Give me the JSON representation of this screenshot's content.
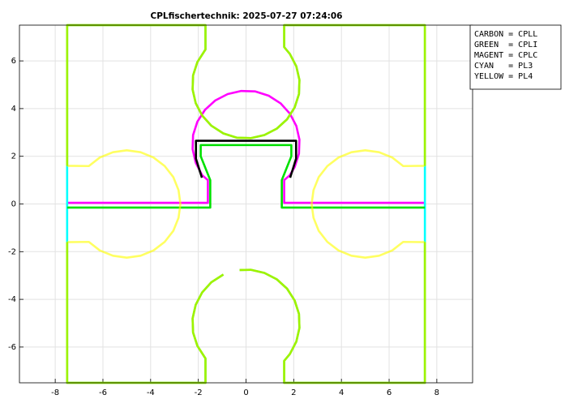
{
  "chart_data": {
    "type": "line",
    "title": "CPLfischertechnik: 2025-07-27 07:24:06",
    "xlim": [
      -9.5,
      9.5
    ],
    "ylim": [
      -7.5,
      7.5
    ],
    "xticks": [
      -8,
      -6,
      -4,
      -2,
      0,
      2,
      4,
      6,
      8
    ],
    "yticks": [
      -6,
      -4,
      -2,
      0,
      2,
      4,
      6
    ],
    "grid": true,
    "legend": "top-right",
    "series": [
      {
        "name": "CARBON = CPLL",
        "color": "#000000",
        "x": [
          -1.85,
          -2.1,
          -2.1,
          2.1,
          2.1,
          1.85
        ],
        "values": [
          1.1,
          1.9,
          2.65,
          2.65,
          1.9,
          1.1
        ]
      },
      {
        "name": "GREEN  = CPLI",
        "color": "#00e000",
        "x": [
          -7.5,
          -1.5,
          -1.5,
          -1.9,
          -1.9,
          1.9,
          1.9,
          1.5,
          1.5,
          7.5,
          null,
          -7.5,
          -7.5,
          -1.7,
          -1.7,
          -2.04,
          -2.22,
          -2.24,
          -2.11,
          -1.84,
          -1.45,
          -0.95,
          -0.39,
          0.2,
          0.77,
          1.29,
          1.72,
          2.04,
          2.22,
          2.24,
          2.11,
          1.84,
          1.6,
          1.6,
          7.5,
          7.5,
          null,
          -7.5,
          -7.5,
          -1.7,
          -1.7,
          -2.04,
          -2.22,
          -2.24,
          -2.11,
          -1.84,
          -1.45,
          -0.95,
          null,
          -0.27,
          0.2,
          0.77,
          1.29,
          1.72,
          2.04,
          2.22,
          2.24,
          2.11,
          1.84,
          1.6,
          1.6,
          7.5,
          7.5
        ],
        "values": [
          -0.15,
          -0.15,
          1.0,
          2.0,
          2.47,
          2.47,
          2.0,
          1.0,
          -0.15,
          -0.15,
          null,
          1.6,
          7.5,
          7.5,
          6.48,
          5.95,
          5.39,
          4.8,
          4.23,
          3.71,
          3.28,
          2.96,
          2.78,
          2.76,
          2.89,
          3.16,
          3.55,
          4.05,
          4.61,
          5.2,
          5.77,
          6.29,
          6.58,
          7.5,
          7.5,
          1.6,
          null,
          -1.6,
          -7.5,
          -7.5,
          -6.48,
          -5.95,
          -5.39,
          -4.8,
          -4.23,
          -3.71,
          -3.28,
          -2.96,
          null,
          -2.77,
          -2.76,
          -2.89,
          -3.16,
          -3.55,
          -4.05,
          -4.61,
          -5.2,
          -5.77,
          -6.29,
          -6.58,
          -7.5,
          -7.5,
          -1.6
        ]
      },
      {
        "name": "MAGENT = CPLC",
        "color": "#ff00ff",
        "x": [
          -7.5,
          -1.6,
          -1.6,
          -1.84,
          -2.11,
          -2.24,
          -2.22,
          -2.04,
          -1.72,
          -1.29,
          -0.77,
          -0.2,
          0.39,
          0.95,
          1.45,
          1.84,
          2.11,
          2.24,
          2.22,
          2.04,
          1.84,
          1.6,
          1.6,
          7.5
        ],
        "values": [
          0.05,
          0.05,
          1.0,
          1.21,
          1.73,
          2.3,
          2.89,
          3.45,
          3.95,
          4.34,
          4.61,
          4.74,
          4.72,
          4.54,
          4.22,
          3.79,
          3.27,
          2.7,
          2.11,
          1.55,
          1.21,
          1.0,
          0.05,
          0.05
        ]
      },
      {
        "name": "CYAN   = PL3",
        "color": "#00ffff",
        "x": [
          -7.5,
          -7.5,
          null,
          7.5,
          7.5
        ],
        "values": [
          1.6,
          -1.6,
          null,
          1.6,
          -1.6
        ]
      },
      {
        "name": "YELLOW = PL4",
        "color": "#ffff00",
        "x": [
          -7.5,
          -7.5,
          -1.7,
          -1.7,
          -2.04,
          -2.22,
          -2.24,
          -2.11,
          -1.84,
          -1.45,
          -0.95,
          -0.39,
          0.2,
          0.77,
          1.29,
          1.72,
          2.04,
          2.22,
          2.24,
          2.11,
          1.84,
          1.6,
          1.6,
          7.5,
          7.5,
          null,
          -7.5,
          -6.59,
          -6.13,
          -5.58,
          -5.0,
          -4.42,
          -3.88,
          -3.41,
          -3.05,
          -2.83,
          -2.75,
          -2.83,
          -3.05,
          -3.41,
          -3.88,
          -4.42,
          -5.0,
          -5.58,
          -6.13,
          -6.59,
          -7.5,
          null,
          -7.5,
          -7.5,
          -1.7,
          -1.7,
          -2.04,
          -2.22,
          -2.24,
          -2.11,
          -1.84,
          -1.45,
          -0.95,
          null,
          -0.27,
          0.2,
          0.77,
          1.29,
          1.72,
          2.04,
          2.22,
          2.24,
          2.11,
          1.84,
          1.6,
          1.6,
          7.5,
          7.5,
          null,
          7.5,
          6.59,
          6.13,
          5.58,
          5.0,
          4.42,
          3.88,
          3.41,
          3.05,
          2.83,
          2.75,
          2.83,
          3.05,
          3.41,
          3.88,
          4.42,
          5.0,
          5.58,
          6.13,
          6.59,
          7.5
        ],
        "values": [
          1.6,
          7.5,
          7.5,
          6.48,
          5.95,
          5.39,
          4.8,
          4.23,
          3.71,
          3.28,
          2.96,
          2.78,
          2.76,
          2.89,
          3.16,
          3.55,
          4.05,
          4.61,
          5.2,
          5.77,
          6.29,
          6.58,
          7.5,
          7.5,
          1.6,
          null,
          1.6,
          1.59,
          1.95,
          2.17,
          2.25,
          2.17,
          1.95,
          1.59,
          1.13,
          0.58,
          0,
          -0.58,
          -1.13,
          -1.59,
          -1.95,
          -2.17,
          -2.25,
          -2.17,
          -1.95,
          -1.59,
          -1.6,
          null,
          -1.6,
          -7.5,
          -7.5,
          -6.48,
          -5.95,
          -5.39,
          -4.8,
          -4.23,
          -3.71,
          -3.28,
          -2.96,
          null,
          -2.77,
          -2.76,
          -2.89,
          -3.16,
          -3.55,
          -4.05,
          -4.61,
          -5.2,
          -5.77,
          -6.29,
          -6.58,
          -7.5,
          -7.5,
          -1.6,
          null,
          1.6,
          1.59,
          1.95,
          2.17,
          2.25,
          2.17,
          1.95,
          1.59,
          1.13,
          0.58,
          0,
          -0.58,
          -1.13,
          -1.59,
          -1.95,
          -2.17,
          -2.25,
          -2.17,
          -1.95,
          -1.59,
          -1.6
        ]
      }
    ]
  }
}
